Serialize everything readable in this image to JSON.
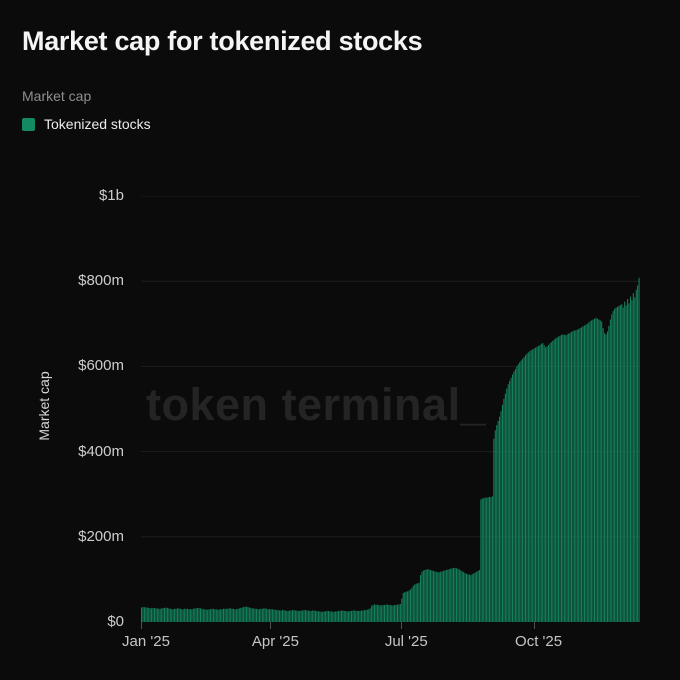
{
  "page": {
    "background_color": "#0b0b0b",
    "accent_color": "#148a62"
  },
  "header": {
    "title": "Market cap for tokenized stocks",
    "metric_label": "Market cap"
  },
  "legend": {
    "items": [
      {
        "label": "Tokenized stocks",
        "color": "#148a62"
      }
    ]
  },
  "watermark": {
    "text": "token terminal_"
  },
  "chart_data": {
    "type": "bar",
    "title": "Market cap for tokenized stocks",
    "ylabel": "Market cap",
    "xlabel": "",
    "series_name": "Tokenized stocks",
    "unit": "USD millions",
    "frequency": "daily",
    "x_start": "2025-01-01",
    "ylim": [
      0,
      1000
    ],
    "grid": "horizontal",
    "legend_position": "top-left",
    "bar_color": "#148a62",
    "grid_color": "#1e1e1e",
    "y_ticks": [
      {
        "value": 0,
        "label": "$0"
      },
      {
        "value": 200,
        "label": "$200m"
      },
      {
        "value": 400,
        "label": "$400m"
      },
      {
        "value": 600,
        "label": "$600m"
      },
      {
        "value": 800,
        "label": "$800m"
      },
      {
        "value": 1000,
        "label": "$1b"
      }
    ],
    "x_ticks": [
      {
        "day": 0,
        "label": "Jan '25"
      },
      {
        "day": 90,
        "label": "Apr '25"
      },
      {
        "day": 181,
        "label": "Jul '25"
      },
      {
        "day": 273,
        "label": "Oct '25"
      }
    ],
    "values": [
      34,
      35,
      35,
      34,
      34,
      33,
      33,
      32,
      33,
      33,
      32,
      32,
      31,
      31,
      32,
      33,
      33,
      34,
      33,
      32,
      31,
      30,
      30,
      31,
      31,
      32,
      32,
      31,
      30,
      30,
      31,
      31,
      31,
      30,
      30,
      30,
      31,
      32,
      32,
      33,
      33,
      32,
      31,
      30,
      30,
      29,
      29,
      30,
      30,
      31,
      31,
      30,
      30,
      29,
      29,
      30,
      30,
      31,
      31,
      31,
      31,
      32,
      32,
      31,
      31,
      30,
      30,
      31,
      32,
      33,
      34,
      35,
      36,
      36,
      35,
      34,
      33,
      32,
      32,
      31,
      31,
      30,
      30,
      31,
      31,
      32,
      32,
      31,
      30,
      30,
      30,
      30,
      29,
      29,
      28,
      28,
      27,
      27,
      28,
      28,
      27,
      26,
      26,
      27,
      27,
      28,
      28,
      27,
      27,
      26,
      26,
      27,
      27,
      28,
      28,
      27,
      27,
      26,
      26,
      27,
      27,
      26,
      26,
      25,
      25,
      24,
      24,
      25,
      25,
      26,
      26,
      25,
      25,
      24,
      24,
      25,
      25,
      26,
      26,
      27,
      27,
      26,
      26,
      25,
      25,
      26,
      26,
      27,
      27,
      26,
      26,
      26,
      26,
      27,
      27,
      28,
      28,
      29,
      30,
      32,
      38,
      40,
      41,
      41,
      40,
      40,
      39,
      39,
      40,
      40,
      41,
      41,
      40,
      40,
      39,
      39,
      40,
      40,
      41,
      41,
      42,
      55,
      68,
      70,
      71,
      72,
      74,
      76,
      80,
      85,
      88,
      90,
      91,
      92,
      110,
      118,
      121,
      122,
      123,
      124,
      123,
      122,
      121,
      120,
      119,
      118,
      117,
      117,
      118,
      119,
      120,
      121,
      122,
      123,
      124,
      125,
      126,
      127,
      127,
      126,
      125,
      123,
      121,
      119,
      117,
      115,
      113,
      112,
      111,
      110,
      112,
      114,
      116,
      118,
      120,
      122,
      288,
      290,
      291,
      292,
      292,
      293,
      294,
      293,
      295,
      430,
      450,
      462,
      472,
      482,
      495,
      510,
      524,
      536,
      548,
      558,
      566,
      573,
      581,
      588,
      594,
      600,
      605,
      610,
      614,
      618,
      622,
      626,
      630,
      633,
      636,
      638,
      640,
      642,
      644,
      646,
      648,
      650,
      653,
      655,
      650,
      645,
      647,
      650,
      654,
      657,
      660,
      663,
      666,
      668,
      670,
      672,
      674,
      675,
      674,
      673,
      675,
      677,
      679,
      681,
      683,
      684,
      685,
      686,
      688,
      690,
      692,
      694,
      696,
      698,
      700,
      703,
      706,
      708,
      710,
      712,
      714,
      712,
      710,
      708,
      705,
      690,
      678,
      675,
      682,
      695,
      710,
      722,
      730,
      735,
      738,
      740,
      742,
      744,
      746,
      738,
      752,
      743,
      758,
      748,
      764,
      755,
      772,
      762,
      780,
      790,
      808
    ]
  }
}
